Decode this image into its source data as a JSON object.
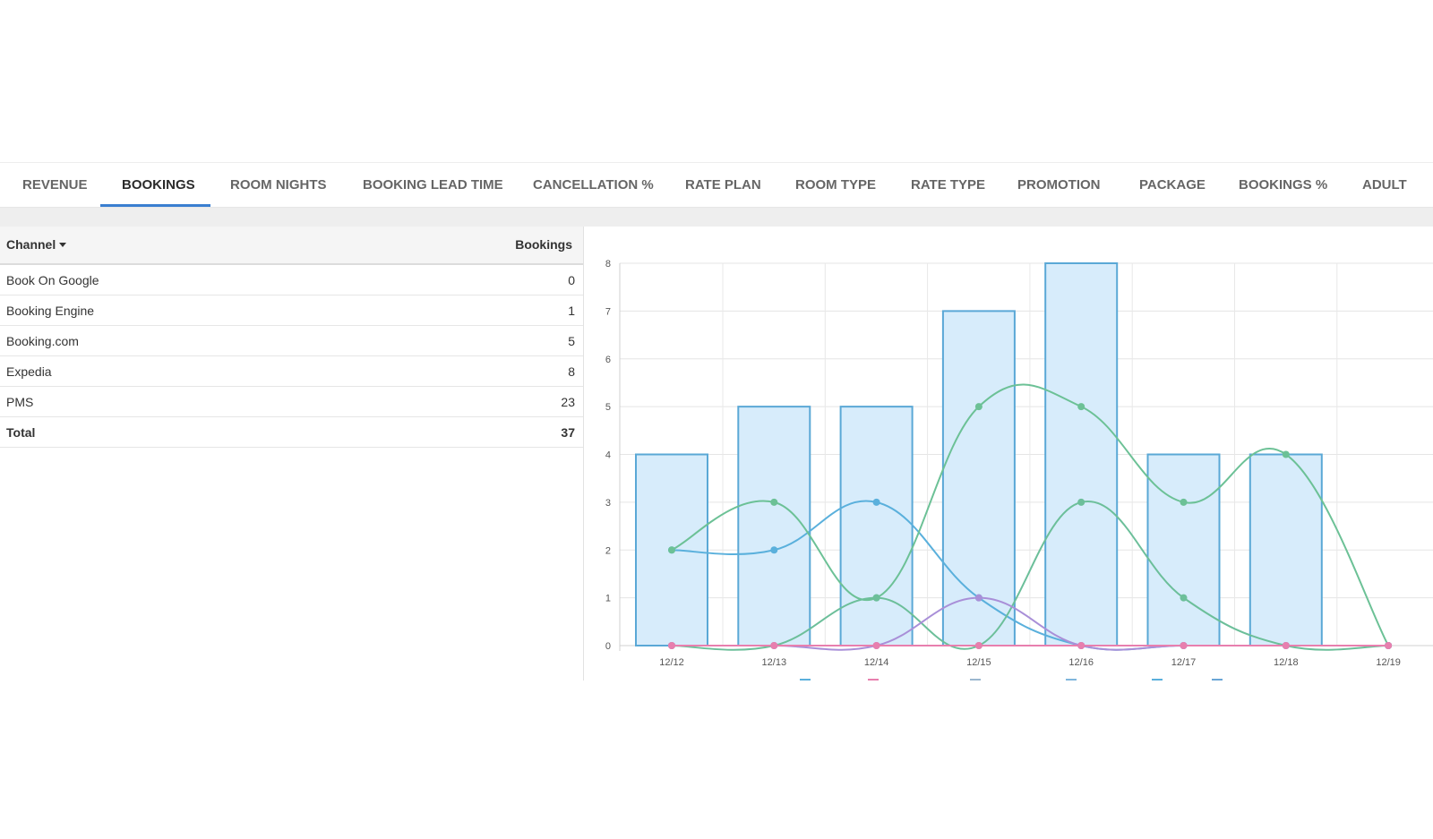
{
  "tabs": [
    {
      "label": "REVENUE",
      "active": false
    },
    {
      "label": "BOOKINGS",
      "active": true
    },
    {
      "label": "ROOM NIGHTS",
      "active": false
    },
    {
      "label": "BOOKING LEAD TIME",
      "active": false
    },
    {
      "label": "CANCELLATION %",
      "active": false
    },
    {
      "label": "RATE PLAN",
      "active": false
    },
    {
      "label": "ROOM TYPE",
      "active": false
    },
    {
      "label": "RATE TYPE",
      "active": false
    },
    {
      "label": "PROMOTION",
      "active": false
    },
    {
      "label": "PACKAGE",
      "active": false
    },
    {
      "label": "BOOKINGS %",
      "active": false
    },
    {
      "label": "ADULT",
      "active": false
    }
  ],
  "table": {
    "col_channel": "Channel",
    "col_bookings": "Bookings",
    "rows": [
      {
        "channel": "Book On Google",
        "bookings": "0"
      },
      {
        "channel": "Booking Engine",
        "bookings": "1"
      },
      {
        "channel": "Booking.com",
        "bookings": "5"
      },
      {
        "channel": "Expedia",
        "bookings": "8"
      },
      {
        "channel": "PMS",
        "bookings": "23"
      }
    ],
    "total_label": "Total",
    "total_value": "37"
  },
  "colors": {
    "accent": "#3a7fd0",
    "bar_fill": "#d7ecfb",
    "bar_stroke": "#5aa8d6",
    "line_blue": "#5ab0dc",
    "line_green": "#6cc196",
    "line_teal": "#6cbf9a",
    "line_purple": "#a98fd8",
    "line_pink": "#e87fae"
  },
  "chart_data": {
    "type": "bar",
    "categories": [
      "12/12",
      "12/13",
      "12/14",
      "12/15",
      "12/16",
      "12/17",
      "12/18",
      "12/19"
    ],
    "ylim": [
      0,
      8
    ],
    "yticks": [
      "0",
      "1",
      "2",
      "3",
      "4",
      "5",
      "6",
      "7",
      "8"
    ],
    "grid": true,
    "bars": [
      4,
      5,
      5,
      7,
      8,
      4,
      4,
      0
    ],
    "lines": [
      {
        "color": "#5ab0dc",
        "values": [
          2,
          2,
          3,
          1,
          0,
          0,
          0,
          0
        ]
      },
      {
        "color": "#6cc196",
        "values": [
          2,
          3,
          1,
          5,
          5,
          3,
          4,
          0
        ]
      },
      {
        "color": "#6cbf9a",
        "values": [
          0,
          0,
          1,
          0,
          3,
          1,
          0,
          0
        ]
      },
      {
        "color": "#a98fd8",
        "values": [
          0,
          0,
          0,
          1,
          0,
          0,
          0,
          0
        ]
      },
      {
        "color": "#e87fae",
        "values": [
          0,
          0,
          0,
          0,
          0,
          0,
          0,
          0
        ]
      }
    ],
    "legend_placement": "bottom",
    "legend_swatches": [
      "#5ab0dc",
      "#e87fae",
      "#9bb7cf",
      "#7fb6dc",
      "#5ab0dc",
      "#6aa6d6"
    ]
  }
}
